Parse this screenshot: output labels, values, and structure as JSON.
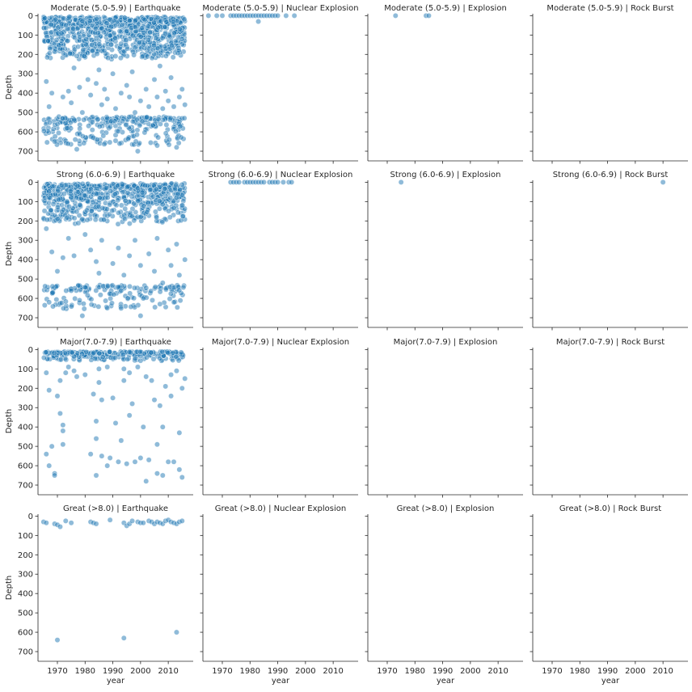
{
  "chart_data": {
    "type": "scatter",
    "xlabel": "year",
    "ylabel": "Depth",
    "xlim": [
      1963,
      2019
    ],
    "ylim": [
      750,
      -10
    ],
    "y_inverted": true,
    "xticks": [
      1970,
      1980,
      1990,
      2000,
      2010
    ],
    "yticks": [
      0,
      100,
      200,
      300,
      400,
      500,
      600,
      700
    ],
    "grid": false,
    "legend": "none",
    "color": "#1f77b4",
    "facets": [
      {
        "row": 0,
        "col": 0,
        "title": "Moderate (5.0-5.9) | Earthquake",
        "dense_clusters": [
          {
            "x_range": [
              1965,
              2016
            ],
            "y_range": [
              5,
              230
            ],
            "count": 900
          },
          {
            "x_range": [
              1965,
              2016
            ],
            "y_range": [
              520,
              680
            ],
            "count": 260
          }
        ],
        "points": [
          [
            1966,
            340
          ],
          [
            1967,
            470
          ],
          [
            1968,
            400
          ],
          [
            1970,
            560
          ],
          [
            1972,
            420
          ],
          [
            1974,
            390
          ],
          [
            1975,
            450
          ],
          [
            1977,
            690
          ],
          [
            1978,
            370
          ],
          [
            1979,
            500
          ],
          [
            1981,
            330
          ],
          [
            1982,
            410
          ],
          [
            1984,
            350
          ],
          [
            1986,
            460
          ],
          [
            1987,
            380
          ],
          [
            1988,
            430
          ],
          [
            1990,
            300
          ],
          [
            1991,
            480
          ],
          [
            1993,
            400
          ],
          [
            1995,
            360
          ],
          [
            1996,
            420
          ],
          [
            1998,
            500
          ],
          [
            1999,
            700
          ],
          [
            2000,
            440
          ],
          [
            2002,
            380
          ],
          [
            2003,
            470
          ],
          [
            2005,
            330
          ],
          [
            2006,
            420
          ],
          [
            2008,
            480
          ],
          [
            2009,
            390
          ],
          [
            2010,
            440
          ],
          [
            2011,
            320
          ],
          [
            2012,
            470
          ],
          [
            2013,
            680
          ],
          [
            2014,
            420
          ],
          [
            2015,
            380
          ],
          [
            2016,
            460
          ],
          [
            1969,
            650
          ],
          [
            1976,
            270
          ],
          [
            1985,
            280
          ],
          [
            1997,
            290
          ],
          [
            2007,
            260
          ]
        ]
      },
      {
        "row": 0,
        "col": 1,
        "title": "Moderate (5.0-5.9) | Nuclear Explosion",
        "points": [
          [
            1965,
            0
          ],
          [
            1968,
            0
          ],
          [
            1970,
            0
          ],
          [
            1973,
            0
          ],
          [
            1974,
            0
          ],
          [
            1975,
            0
          ],
          [
            1976,
            0
          ],
          [
            1977,
            0
          ],
          [
            1978,
            0
          ],
          [
            1979,
            0
          ],
          [
            1980,
            0
          ],
          [
            1981,
            0
          ],
          [
            1982,
            0
          ],
          [
            1983,
            0
          ],
          [
            1984,
            0
          ],
          [
            1985,
            0
          ],
          [
            1986,
            0
          ],
          [
            1987,
            0
          ],
          [
            1988,
            0
          ],
          [
            1989,
            0
          ],
          [
            1990,
            0
          ],
          [
            1993,
            0
          ],
          [
            1996,
            0
          ],
          [
            1983,
            30
          ]
        ]
      },
      {
        "row": 0,
        "col": 2,
        "title": "Moderate (5.0-5.9) | Explosion",
        "points": [
          [
            1973,
            0
          ],
          [
            1984,
            0
          ],
          [
            1985,
            0
          ]
        ]
      },
      {
        "row": 0,
        "col": 3,
        "title": "Moderate (5.0-5.9) | Rock Burst",
        "points": []
      },
      {
        "row": 1,
        "col": 0,
        "title": "Strong (6.0-6.9) | Earthquake",
        "dense_clusters": [
          {
            "x_range": [
              1965,
              2016
            ],
            "y_range": [
              5,
              220
            ],
            "count": 700
          },
          {
            "x_range": [
              1965,
              2016
            ],
            "y_range": [
              530,
              660
            ],
            "count": 160
          }
        ],
        "points": [
          [
            1966,
            240
          ],
          [
            1967,
            620
          ],
          [
            1968,
            360
          ],
          [
            1970,
            460
          ],
          [
            1972,
            390
          ],
          [
            1974,
            290
          ],
          [
            1975,
            560
          ],
          [
            1976,
            380
          ],
          [
            1978,
            610
          ],
          [
            1980,
            270
          ],
          [
            1982,
            350
          ],
          [
            1984,
            410
          ],
          [
            1985,
            470
          ],
          [
            1986,
            300
          ],
          [
            1988,
            650
          ],
          [
            1990,
            420
          ],
          [
            1992,
            340
          ],
          [
            1993,
            560
          ],
          [
            1994,
            480
          ],
          [
            1996,
            380
          ],
          [
            1998,
            300
          ],
          [
            2000,
            430
          ],
          [
            2001,
            600
          ],
          [
            2003,
            370
          ],
          [
            2005,
            460
          ],
          [
            2006,
            290
          ],
          [
            2008,
            520
          ],
          [
            2010,
            350
          ],
          [
            2011,
            430
          ],
          [
            2013,
            320
          ],
          [
            2014,
            480
          ],
          [
            2016,
            400
          ],
          [
            1979,
            690
          ],
          [
            2000,
            690
          ]
        ]
      },
      {
        "row": 1,
        "col": 1,
        "title": "Strong (6.0-6.9) | Nuclear Explosion",
        "points": [
          [
            1973,
            0
          ],
          [
            1974,
            0
          ],
          [
            1975,
            0
          ],
          [
            1976,
            0
          ],
          [
            1978,
            0
          ],
          [
            1979,
            0
          ],
          [
            1980,
            0
          ],
          [
            1981,
            0
          ],
          [
            1982,
            0
          ],
          [
            1983,
            0
          ],
          [
            1984,
            0
          ],
          [
            1985,
            0
          ],
          [
            1987,
            0
          ],
          [
            1988,
            0
          ],
          [
            1989,
            0
          ],
          [
            1990,
            0
          ],
          [
            1992,
            0
          ],
          [
            1994,
            0
          ],
          [
            1995,
            0
          ]
        ]
      },
      {
        "row": 1,
        "col": 2,
        "title": "Strong (6.0-6.9) | Explosion",
        "points": [
          [
            1975,
            0
          ]
        ]
      },
      {
        "row": 1,
        "col": 3,
        "title": "Strong (6.0-6.9) | Rock Burst",
        "points": [
          [
            2010,
            0
          ]
        ]
      },
      {
        "row": 2,
        "col": 0,
        "title": "Major(7.0-7.9) | Earthquake",
        "dense_clusters": [
          {
            "x_range": [
              1965,
              2016
            ],
            "y_range": [
              10,
              60
            ],
            "count": 260
          }
        ],
        "points": [
          [
            1966,
            120
          ],
          [
            1966,
            540
          ],
          [
            1967,
            600
          ],
          [
            1967,
            210
          ],
          [
            1968,
            500
          ],
          [
            1969,
            640
          ],
          [
            1969,
            650
          ],
          [
            1970,
            240
          ],
          [
            1971,
            330
          ],
          [
            1971,
            160
          ],
          [
            1972,
            390
          ],
          [
            1972,
            420
          ],
          [
            1972,
            490
          ],
          [
            1973,
            120
          ],
          [
            1974,
            90
          ],
          [
            1976,
            110
          ],
          [
            1977,
            140
          ],
          [
            1980,
            130
          ],
          [
            1982,
            540
          ],
          [
            1983,
            230
          ],
          [
            1984,
            650
          ],
          [
            1984,
            370
          ],
          [
            1984,
            460
          ],
          [
            1985,
            100
          ],
          [
            1985,
            170
          ],
          [
            1986,
            260
          ],
          [
            1986,
            550
          ],
          [
            1988,
            90
          ],
          [
            1988,
            600
          ],
          [
            1989,
            560
          ],
          [
            1990,
            250
          ],
          [
            1991,
            380
          ],
          [
            1992,
            580
          ],
          [
            1993,
            470
          ],
          [
            1994,
            100
          ],
          [
            1994,
            160
          ],
          [
            1995,
            590
          ],
          [
            1996,
            120
          ],
          [
            1996,
            340
          ],
          [
            1997,
            280
          ],
          [
            1998,
            580
          ],
          [
            1999,
            90
          ],
          [
            2000,
            560
          ],
          [
            2001,
            400
          ],
          [
            2002,
            680
          ],
          [
            2002,
            140
          ],
          [
            2003,
            570
          ],
          [
            2004,
            160
          ],
          [
            2005,
            260
          ],
          [
            2006,
            640
          ],
          [
            2006,
            490
          ],
          [
            2007,
            290
          ],
          [
            2008,
            400
          ],
          [
            2008,
            650
          ],
          [
            2009,
            190
          ],
          [
            2010,
            580
          ],
          [
            2011,
            130
          ],
          [
            2011,
            240
          ],
          [
            2012,
            580
          ],
          [
            2013,
            110
          ],
          [
            2014,
            430
          ],
          [
            2014,
            620
          ],
          [
            2015,
            660
          ],
          [
            2015,
            200
          ],
          [
            2016,
            150
          ]
        ]
      },
      {
        "row": 2,
        "col": 1,
        "title": "Major(7.0-7.9) | Nuclear Explosion",
        "points": []
      },
      {
        "row": 2,
        "col": 2,
        "title": "Major(7.0-7.9) | Explosion",
        "points": []
      },
      {
        "row": 2,
        "col": 3,
        "title": "Major(7.0-7.9) | Rock Burst",
        "points": []
      },
      {
        "row": 3,
        "col": 0,
        "title": "Great (>8.0) | Earthquake",
        "points": [
          [
            1965,
            30
          ],
          [
            1966,
            35
          ],
          [
            1969,
            40
          ],
          [
            1970,
            45
          ],
          [
            1970,
            640
          ],
          [
            1971,
            55
          ],
          [
            1973,
            25
          ],
          [
            1975,
            35
          ],
          [
            1982,
            30
          ],
          [
            1983,
            35
          ],
          [
            1984,
            40
          ],
          [
            1989,
            20
          ],
          [
            1994,
            35
          ],
          [
            1994,
            630
          ],
          [
            1995,
            50
          ],
          [
            1996,
            40
          ],
          [
            1997,
            25
          ],
          [
            1999,
            30
          ],
          [
            2000,
            35
          ],
          [
            2001,
            35
          ],
          [
            2003,
            25
          ],
          [
            2004,
            30
          ],
          [
            2005,
            40
          ],
          [
            2006,
            30
          ],
          [
            2007,
            35
          ],
          [
            2008,
            40
          ],
          [
            2009,
            25
          ],
          [
            2010,
            20
          ],
          [
            2011,
            30
          ],
          [
            2012,
            35
          ],
          [
            2013,
            600
          ],
          [
            2013,
            40
          ],
          [
            2014,
            30
          ],
          [
            2015,
            25
          ]
        ]
      },
      {
        "row": 3,
        "col": 1,
        "title": "Great (>8.0) | Nuclear Explosion",
        "points": []
      },
      {
        "row": 3,
        "col": 2,
        "title": "Great (>8.0) | Explosion",
        "points": []
      },
      {
        "row": 3,
        "col": 3,
        "title": "Great (>8.0) | Rock Burst",
        "points": []
      }
    ]
  }
}
